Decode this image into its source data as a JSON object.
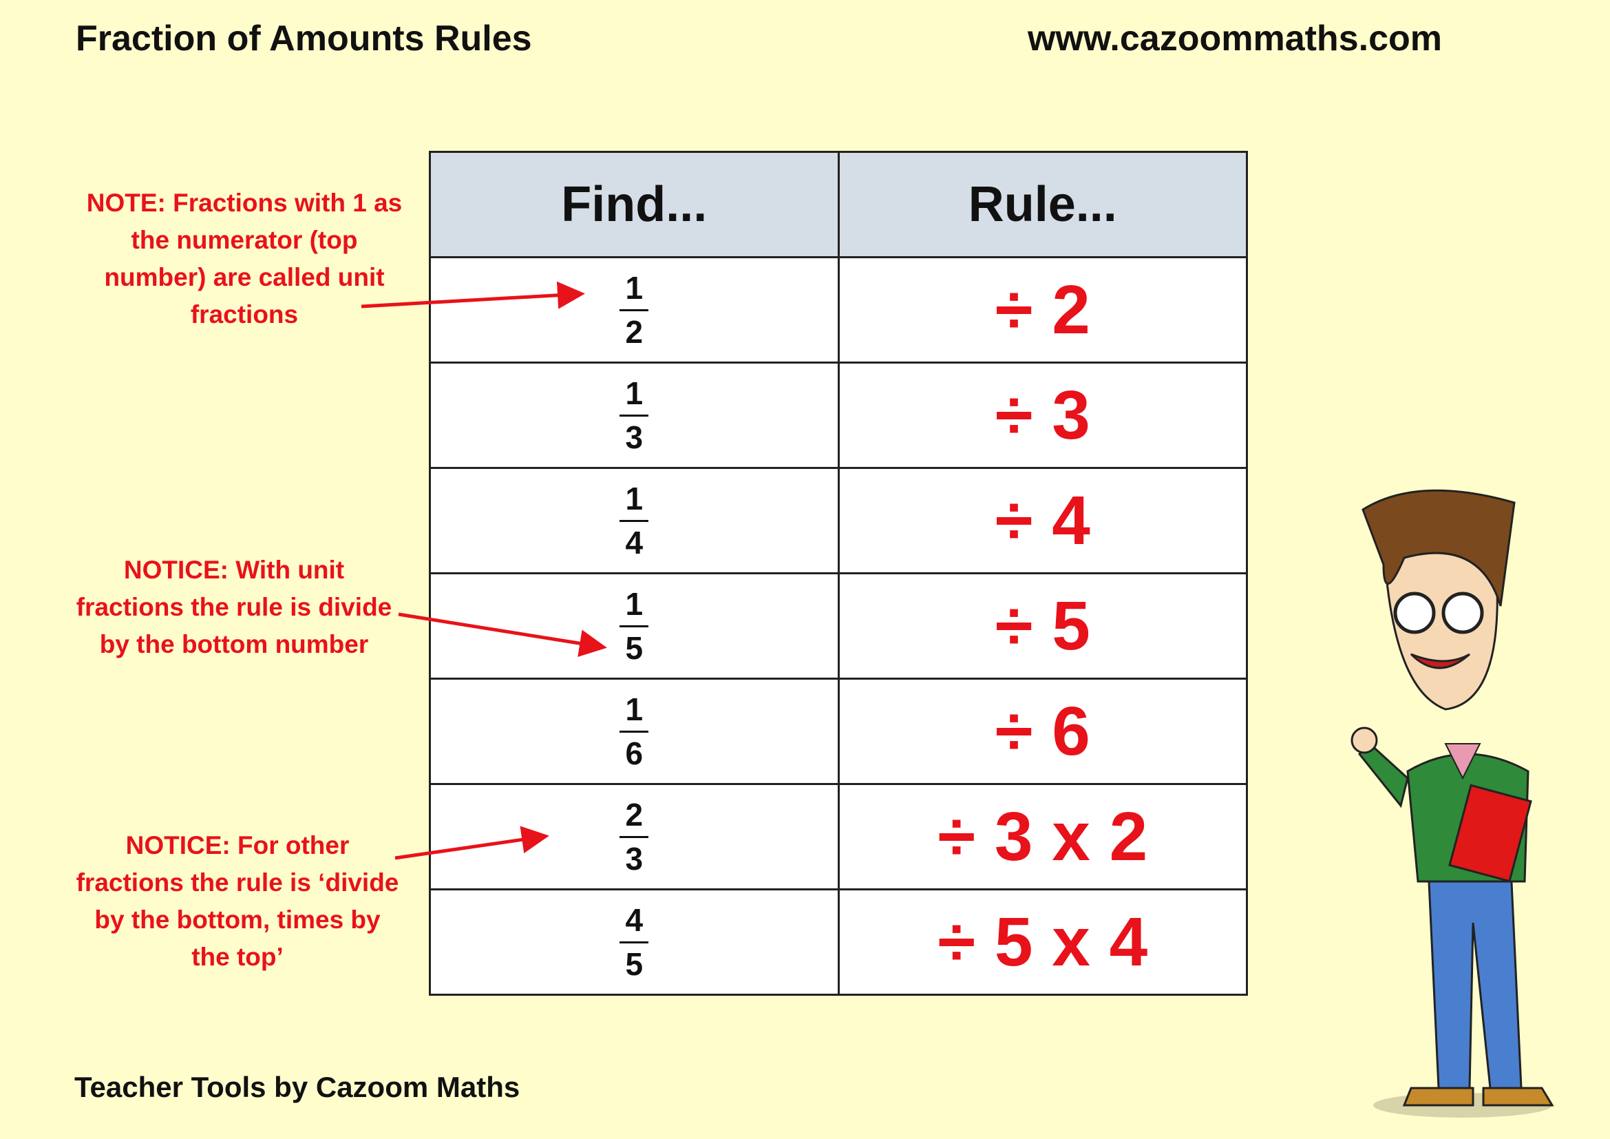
{
  "header": {
    "title": "Fraction of Amounts Rules",
    "url": "www.cazoommaths.com"
  },
  "table": {
    "columns": [
      "Find...",
      "Rule..."
    ],
    "rows": [
      {
        "numerator": "1",
        "denominator": "2",
        "rule": "÷ 2"
      },
      {
        "numerator": "1",
        "denominator": "3",
        "rule": "÷ 3"
      },
      {
        "numerator": "1",
        "denominator": "4",
        "rule": "÷ 4"
      },
      {
        "numerator": "1",
        "denominator": "5",
        "rule": "÷ 5"
      },
      {
        "numerator": "1",
        "denominator": "6",
        "rule": "÷ 6"
      },
      {
        "numerator": "2",
        "denominator": "3",
        "rule": "÷ 3 x 2"
      },
      {
        "numerator": "4",
        "denominator": "5",
        "rule": "÷ 5 x 4"
      }
    ]
  },
  "notes": [
    "NOTE: Fractions with 1 as the numerator (top number) are called unit fractions",
    "NOTICE: With unit fractions the rule is divide by the bottom number",
    "NOTICE: For other fractions the rule is ‘divide by the bottom, times by the top’"
  ],
  "footer": "Teacher Tools by Cazoom Maths",
  "colors": {
    "background": "#fffdcc",
    "header_fill": "#d5dde6",
    "accent_red": "#e8121a"
  }
}
